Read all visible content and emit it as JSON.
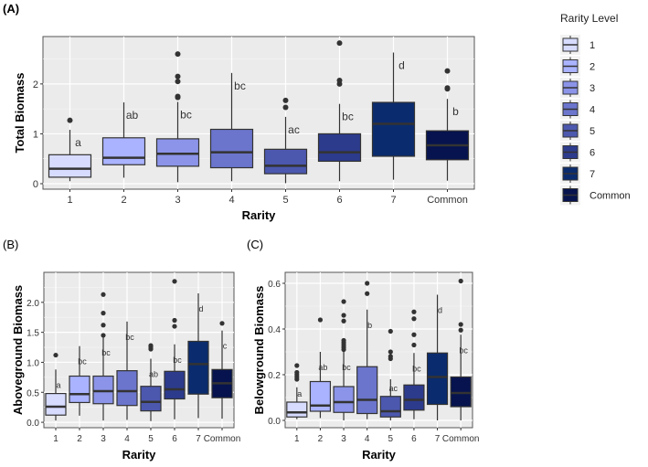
{
  "colors": {
    "1": "#d7dcff",
    "2": "#aab3ff",
    "3": "#8b94e8",
    "4": "#6b75cc",
    "5": "#4c58ae",
    "6": "#2c3b8c",
    "7": "#0a2b6e",
    "Common": "#06134f"
  },
  "legend": {
    "title": "Rarity Level",
    "entries": [
      "1",
      "2",
      "3",
      "4",
      "5",
      "6",
      "7",
      "Common"
    ]
  },
  "chart_data": [
    {
      "panel": "(A)",
      "type": "box",
      "xlabel": "Rarity",
      "ylabel": "Total Biomass",
      "categories": [
        "1",
        "2",
        "3",
        "4",
        "5",
        "6",
        "7",
        "Common"
      ],
      "yticks": [
        "0",
        "1",
        "2"
      ],
      "ytick_values": [
        0,
        1,
        2
      ],
      "ylim": [
        -0.11,
        2.95
      ],
      "boxes": [
        {
          "low": 0.05,
          "q1": 0.13,
          "median": 0.3,
          "q3": 0.58,
          "high": 1.08,
          "outliers": [
            1.27
          ],
          "letter": "a"
        },
        {
          "low": 0.12,
          "q1": 0.38,
          "median": 0.52,
          "q3": 0.92,
          "high": 1.63,
          "outliers": [],
          "letter": "ab"
        },
        {
          "low": 0.03,
          "q1": 0.35,
          "median": 0.6,
          "q3": 0.9,
          "high": 1.64,
          "outliers": [
            1.73,
            1.75,
            2.05,
            2.15,
            2.6
          ],
          "letter": "bc"
        },
        {
          "low": 0.05,
          "q1": 0.32,
          "median": 0.63,
          "q3": 1.09,
          "high": 2.22,
          "outliers": [],
          "letter": "bc"
        },
        {
          "low": 0.01,
          "q1": 0.2,
          "median": 0.36,
          "q3": 0.69,
          "high": 1.34,
          "outliers": [
            1.53,
            1.67
          ],
          "letter": "ac"
        },
        {
          "low": 0.05,
          "q1": 0.45,
          "median": 0.63,
          "q3": 1.0,
          "high": 1.6,
          "outliers": [
            2.0,
            2.07,
            2.82
          ],
          "letter": "bc"
        },
        {
          "low": 0.08,
          "q1": 0.55,
          "median": 1.2,
          "q3": 1.63,
          "high": 2.63,
          "outliers": [],
          "letter": "d"
        },
        {
          "low": 0.06,
          "q1": 0.48,
          "median": 0.77,
          "q3": 1.06,
          "high": 1.7,
          "outliers": [
            1.9,
            1.92,
            2.26
          ],
          "letter": "b"
        }
      ]
    },
    {
      "panel": "(B)",
      "type": "box",
      "xlabel": "Rarity",
      "ylabel": "Aboveground Biomass",
      "categories": [
        "1",
        "2",
        "3",
        "4",
        "5",
        "6",
        "7",
        "Common"
      ],
      "yticks": [
        "0.0",
        "0.5",
        "1.0",
        "1.5",
        "2.0"
      ],
      "ytick_values": [
        0,
        0.5,
        1,
        1.5,
        2
      ],
      "ylim": [
        -0.09,
        2.5
      ],
      "boxes": [
        {
          "low": 0.03,
          "q1": 0.12,
          "median": 0.26,
          "q3": 0.48,
          "high": 0.88,
          "outliers": [
            1.12
          ],
          "letter": "a"
        },
        {
          "low": 0.11,
          "q1": 0.33,
          "median": 0.47,
          "q3": 0.77,
          "high": 1.27,
          "outliers": [],
          "letter": "bc"
        },
        {
          "low": 0.03,
          "q1": 0.31,
          "median": 0.52,
          "q3": 0.77,
          "high": 1.42,
          "outliers": [
            1.45,
            1.62,
            1.82,
            2.13
          ],
          "letter": "bc"
        },
        {
          "low": 0.04,
          "q1": 0.28,
          "median": 0.52,
          "q3": 0.86,
          "high": 1.68,
          "outliers": [],
          "letter": "bc"
        },
        {
          "low": 0.02,
          "q1": 0.19,
          "median": 0.34,
          "q3": 0.6,
          "high": 1.06,
          "outliers": [
            1.22,
            1.25,
            1.28
          ],
          "letter": "ab"
        },
        {
          "low": 0.05,
          "q1": 0.39,
          "median": 0.55,
          "q3": 0.85,
          "high": 1.3,
          "outliers": [
            1.6,
            1.7,
            2.35
          ],
          "letter": "bc"
        },
        {
          "low": 0.07,
          "q1": 0.47,
          "median": 0.97,
          "q3": 1.35,
          "high": 2.15,
          "outliers": [],
          "letter": "d"
        },
        {
          "low": 0.06,
          "q1": 0.41,
          "median": 0.65,
          "q3": 0.88,
          "high": 1.53,
          "outliers": [
            1.65
          ],
          "letter": "c"
        }
      ]
    },
    {
      "panel": "(C)",
      "type": "box",
      "xlabel": "Rarity",
      "ylabel": "Belowground Biomass",
      "categories": [
        "1",
        "2",
        "3",
        "4",
        "5",
        "6",
        "7",
        "Common"
      ],
      "yticks": [
        "0.0",
        "0.2",
        "0.4",
        "0.6"
      ],
      "ytick_values": [
        0,
        0.2,
        0.4,
        0.6
      ],
      "ylim": [
        -0.032,
        0.648
      ],
      "boxes": [
        {
          "low": 0.005,
          "q1": 0.015,
          "median": 0.035,
          "q3": 0.08,
          "high": 0.145,
          "outliers": [
            0.18,
            0.19,
            0.2,
            0.21,
            0.24
          ],
          "letter": "a"
        },
        {
          "low": 0.01,
          "q1": 0.04,
          "median": 0.065,
          "q3": 0.17,
          "high": 0.3,
          "outliers": [
            0.44
          ],
          "letter": "ab"
        },
        {
          "low": 0.0,
          "q1": 0.035,
          "median": 0.08,
          "q3": 0.148,
          "high": 0.3,
          "outliers": [
            0.31,
            0.32,
            0.33,
            0.34,
            0.35,
            0.435,
            0.46,
            0.52
          ],
          "letter": "bc"
        },
        {
          "low": 0.005,
          "q1": 0.03,
          "median": 0.09,
          "q3": 0.235,
          "high": 0.485,
          "outliers": [
            0.555,
            0.6
          ],
          "letter": "b"
        },
        {
          "low": 0.0,
          "q1": 0.015,
          "median": 0.04,
          "q3": 0.105,
          "high": 0.18,
          "outliers": [
            0.27,
            0.28,
            0.3,
            0.39
          ],
          "letter": "ac"
        },
        {
          "low": 0.005,
          "q1": 0.045,
          "median": 0.09,
          "q3": 0.155,
          "high": 0.295,
          "outliers": [
            0.33,
            0.375,
            0.445,
            0.475
          ],
          "letter": "bc"
        },
        {
          "low": 0.0,
          "q1": 0.07,
          "median": 0.19,
          "q3": 0.295,
          "high": 0.55,
          "outliers": [],
          "letter": "d"
        },
        {
          "low": 0.0,
          "q1": 0.06,
          "median": 0.12,
          "q3": 0.19,
          "high": 0.375,
          "outliers": [
            0.395,
            0.42,
            0.61
          ],
          "letter": "bc"
        }
      ]
    }
  ]
}
